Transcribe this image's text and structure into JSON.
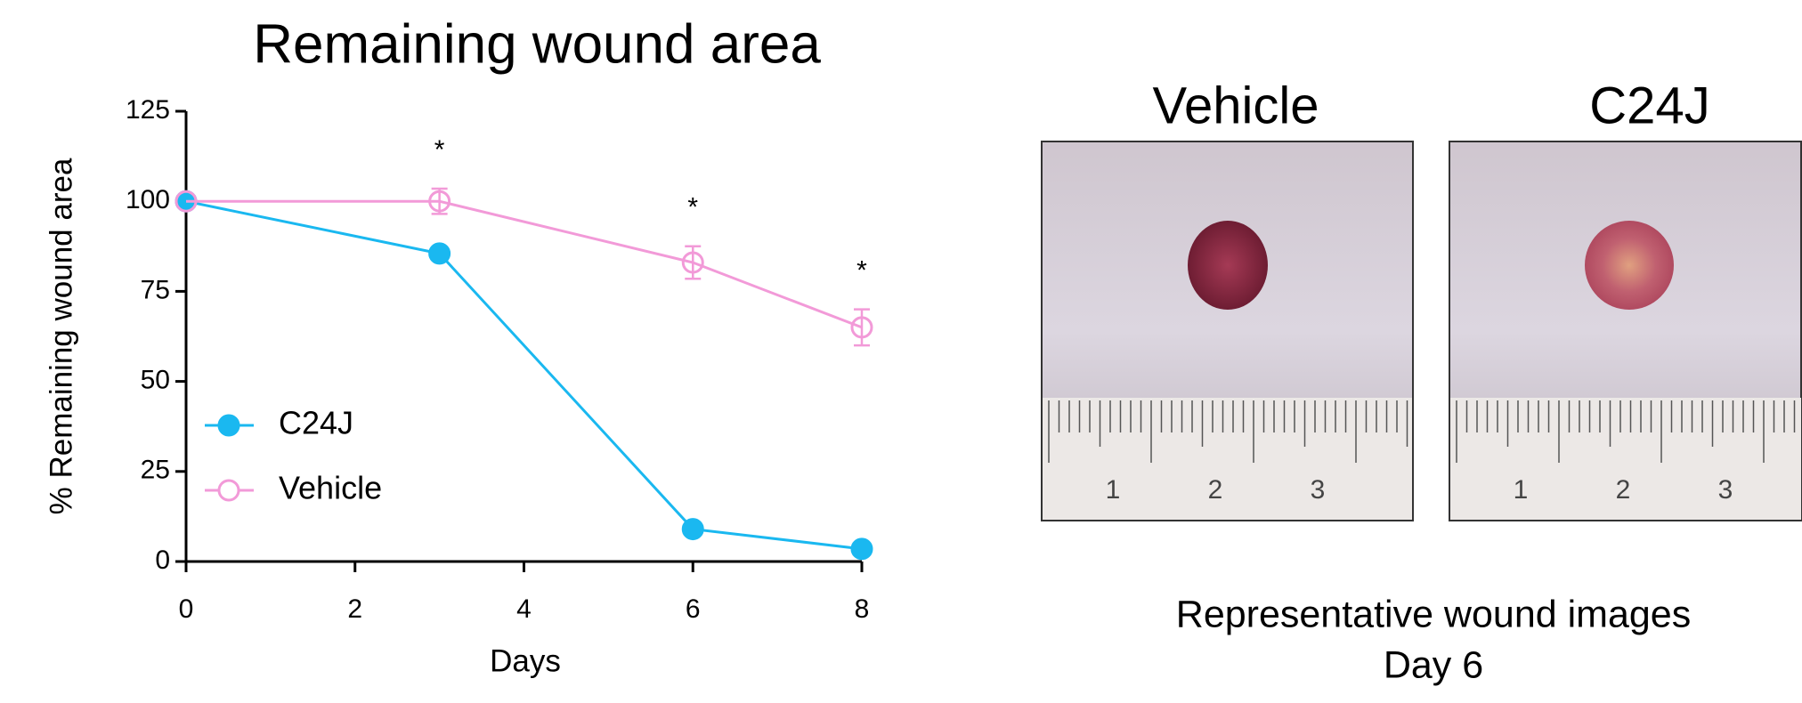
{
  "chart_data": {
    "type": "line",
    "title": "Remaining wound area",
    "x_label": "Days",
    "y_label": "% Remaining wound area",
    "x": [
      0,
      3,
      6,
      8
    ],
    "series": [
      {
        "name": "C24J",
        "color": "#1ab8f0",
        "marker": "filled",
        "values": [
          100,
          85.5,
          9,
          3.5
        ],
        "errors": [
          0,
          1.5,
          1.5,
          1
        ]
      },
      {
        "name": "Vehicle",
        "color": "#f29ad8",
        "marker": "open",
        "values": [
          100,
          100,
          83,
          65
        ],
        "errors": [
          0,
          3.5,
          4.5,
          5
        ]
      }
    ],
    "annotations": [
      {
        "x": 3,
        "text": "*"
      },
      {
        "x": 6,
        "text": "*"
      },
      {
        "x": 8,
        "text": "*"
      }
    ],
    "xlim": [
      0,
      8
    ],
    "xticks": [
      0,
      2,
      4,
      6,
      8
    ],
    "ylim": [
      0,
      125
    ],
    "yticks": [
      0,
      25,
      50,
      75,
      100,
      125
    ],
    "legend": "lower-left"
  },
  "panel": {
    "images": [
      {
        "label": "Vehicle",
        "ruler": [
          "1",
          "2",
          "3"
        ]
      },
      {
        "label": "C24J",
        "ruler": [
          "1",
          "2",
          "3"
        ]
      }
    ],
    "caption": [
      "Representative wound images",
      "Day 6"
    ]
  }
}
